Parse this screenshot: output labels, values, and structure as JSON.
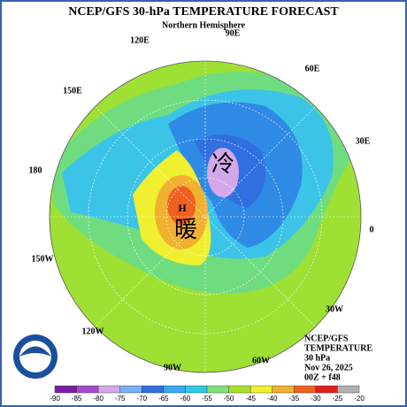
{
  "header": {
    "title": "NCEP/GFS 30-hPa TEMPERATURE FORECAST",
    "subtitle": "Northern Hemisphere"
  },
  "longitudes": [
    "120E",
    "90E",
    "60E",
    "30E",
    "0",
    "30W",
    "60W",
    "90W",
    "120W",
    "150W",
    "180",
    "150E"
  ],
  "map_labels": {
    "cold": "冷",
    "warm": "暖",
    "high": "H"
  },
  "info": [
    "NCEP/GFS",
    "TEMPERATURE",
    "30 hPa",
    "Nov 26, 2025",
    "00Z + f48"
  ],
  "colorbar": {
    "ticks": [
      -90,
      -85,
      -80,
      -75,
      -70,
      -65,
      -60,
      -55,
      -50,
      -45,
      -40,
      -35,
      -30,
      -25,
      -20
    ],
    "colors": [
      "#7b1fa2",
      "#a64cc8",
      "#d3a8e8",
      "#7ab0f0",
      "#2f6fe0",
      "#38a8f0",
      "#30c8e8",
      "#7ee07e",
      "#a8e030",
      "#f0f030",
      "#f0b030",
      "#f06020",
      "#e02020",
      "#b0b0b0"
    ]
  }
}
